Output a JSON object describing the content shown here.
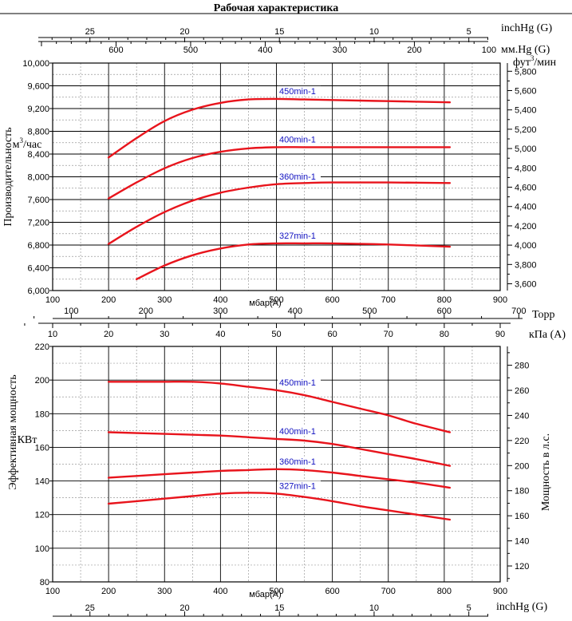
{
  "title": "Рабочая характеристика",
  "colors": {
    "curve": "#e8141c",
    "curve_label": "#1010c0",
    "grid_major": "#000000",
    "grid_minor": "#9a9a9a"
  },
  "top_axes": {
    "inchHg": {
      "unit": "inchHg (G)",
      "ticks": [
        25,
        20,
        15,
        10,
        5
      ]
    },
    "mmHg": {
      "unit": "мм.Hg (G)",
      "ticks": [
        600,
        500,
        400,
        300,
        200,
        100
      ]
    }
  },
  "middle_axes": {
    "mbar": {
      "ticks": [
        100,
        200,
        300,
        400,
        500,
        600,
        700,
        800,
        900
      ],
      "label": "мбар(A)"
    },
    "torr": {
      "unit": "Торр",
      "ticks": [
        100,
        200,
        300,
        400,
        500,
        600,
        700
      ]
    },
    "kpa": {
      "unit": "кПа (A)",
      "ticks": [
        10,
        20,
        30,
        40,
        50,
        60,
        70,
        80,
        90
      ]
    }
  },
  "bottom_axes": {
    "mbar": {
      "ticks": [
        100,
        200,
        300,
        400,
        500,
        600,
        700,
        800,
        900
      ],
      "label": "мбар(A)"
    },
    "inchHg": {
      "unit": "inchHg (G)",
      "ticks": [
        25,
        20,
        15,
        10,
        5
      ]
    }
  },
  "chart_data": [
    {
      "type": "line",
      "xlabel": "мбар(A)",
      "ylabel": "Производительность",
      "yunit": "м³/час",
      "xlim": [
        100,
        900
      ],
      "ylim": [
        6000,
        10000
      ],
      "yticks": [
        "6,000",
        "6,400",
        "6,800",
        "7,200",
        "7,600",
        "8,000",
        "8,400",
        "8,800",
        "9,200",
        "9,600",
        "10,000"
      ],
      "secondary_y": {
        "unit": "фут³/мин",
        "ticks": [
          "3,600",
          "3,800",
          "4,000",
          "4,200",
          "4,400",
          "4,600",
          "4,800",
          "5,000",
          "5,200",
          "5,400",
          "5,600",
          "5,800"
        ],
        "lim": [
          3530,
          5885
        ]
      },
      "series": [
        {
          "name": "450min-1",
          "x": [
            200,
            250,
            300,
            350,
            400,
            450,
            500,
            550,
            600,
            700,
            810
          ],
          "y": [
            8340,
            8680,
            8980,
            9180,
            9300,
            9360,
            9370,
            9360,
            9350,
            9330,
            9310
          ]
        },
        {
          "name": "400min-1",
          "x": [
            200,
            250,
            300,
            350,
            400,
            450,
            500,
            550,
            600,
            700,
            810
          ],
          "y": [
            7620,
            7900,
            8150,
            8330,
            8440,
            8500,
            8520,
            8520,
            8520,
            8520,
            8520
          ]
        },
        {
          "name": "360min-1",
          "x": [
            200,
            250,
            300,
            350,
            400,
            450,
            500,
            550,
            600,
            700,
            810
          ],
          "y": [
            6820,
            7120,
            7380,
            7580,
            7720,
            7810,
            7870,
            7890,
            7900,
            7900,
            7890
          ]
        },
        {
          "name": "327min-1",
          "x": [
            250,
            300,
            350,
            400,
            450,
            500,
            550,
            600,
            700,
            810
          ],
          "y": [
            6200,
            6440,
            6620,
            6740,
            6810,
            6830,
            6830,
            6830,
            6810,
            6770
          ]
        }
      ]
    },
    {
      "type": "line",
      "xlabel": "мбар(A)",
      "ylabel": "Эффективная мощность",
      "yunit": "КВт",
      "xlim": [
        100,
        900
      ],
      "ylim": [
        80,
        220
      ],
      "yticks": [
        "80",
        "100",
        "120",
        "140",
        "160",
        "180",
        "200",
        "220"
      ],
      "secondary_y": {
        "label": "Мощность в л.с.",
        "ticks": [
          "120",
          "140",
          "160",
          "180",
          "200",
          "220",
          "240",
          "260",
          "280"
        ],
        "lim": [
          107.3,
          295
        ]
      },
      "series": [
        {
          "name": "450min-1",
          "x": [
            200,
            250,
            300,
            350,
            400,
            450,
            500,
            550,
            600,
            650,
            700,
            750,
            810
          ],
          "y": [
            199,
            199,
            199,
            199,
            198,
            196,
            194,
            191,
            187,
            183,
            179,
            174,
            169
          ]
        },
        {
          "name": "400min-1",
          "x": [
            200,
            300,
            400,
            450,
            500,
            550,
            600,
            650,
            700,
            750,
            810
          ],
          "y": [
            169,
            168,
            167,
            166,
            165,
            164,
            162,
            159,
            156,
            153,
            149
          ]
        },
        {
          "name": "360min-1",
          "x": [
            200,
            250,
            300,
            350,
            400,
            450,
            500,
            550,
            600,
            650,
            700,
            750,
            810
          ],
          "y": [
            142,
            143,
            144,
            145,
            146,
            146.5,
            147,
            146.5,
            145,
            143,
            141,
            139,
            136
          ]
        },
        {
          "name": "327min-1",
          "x": [
            200,
            250,
            300,
            350,
            400,
            450,
            500,
            550,
            600,
            650,
            700,
            750,
            810
          ],
          "y": [
            126.5,
            128,
            129.5,
            131,
            132.5,
            133,
            132.5,
            130.5,
            128,
            125,
            122.5,
            120,
            117
          ]
        }
      ]
    }
  ]
}
